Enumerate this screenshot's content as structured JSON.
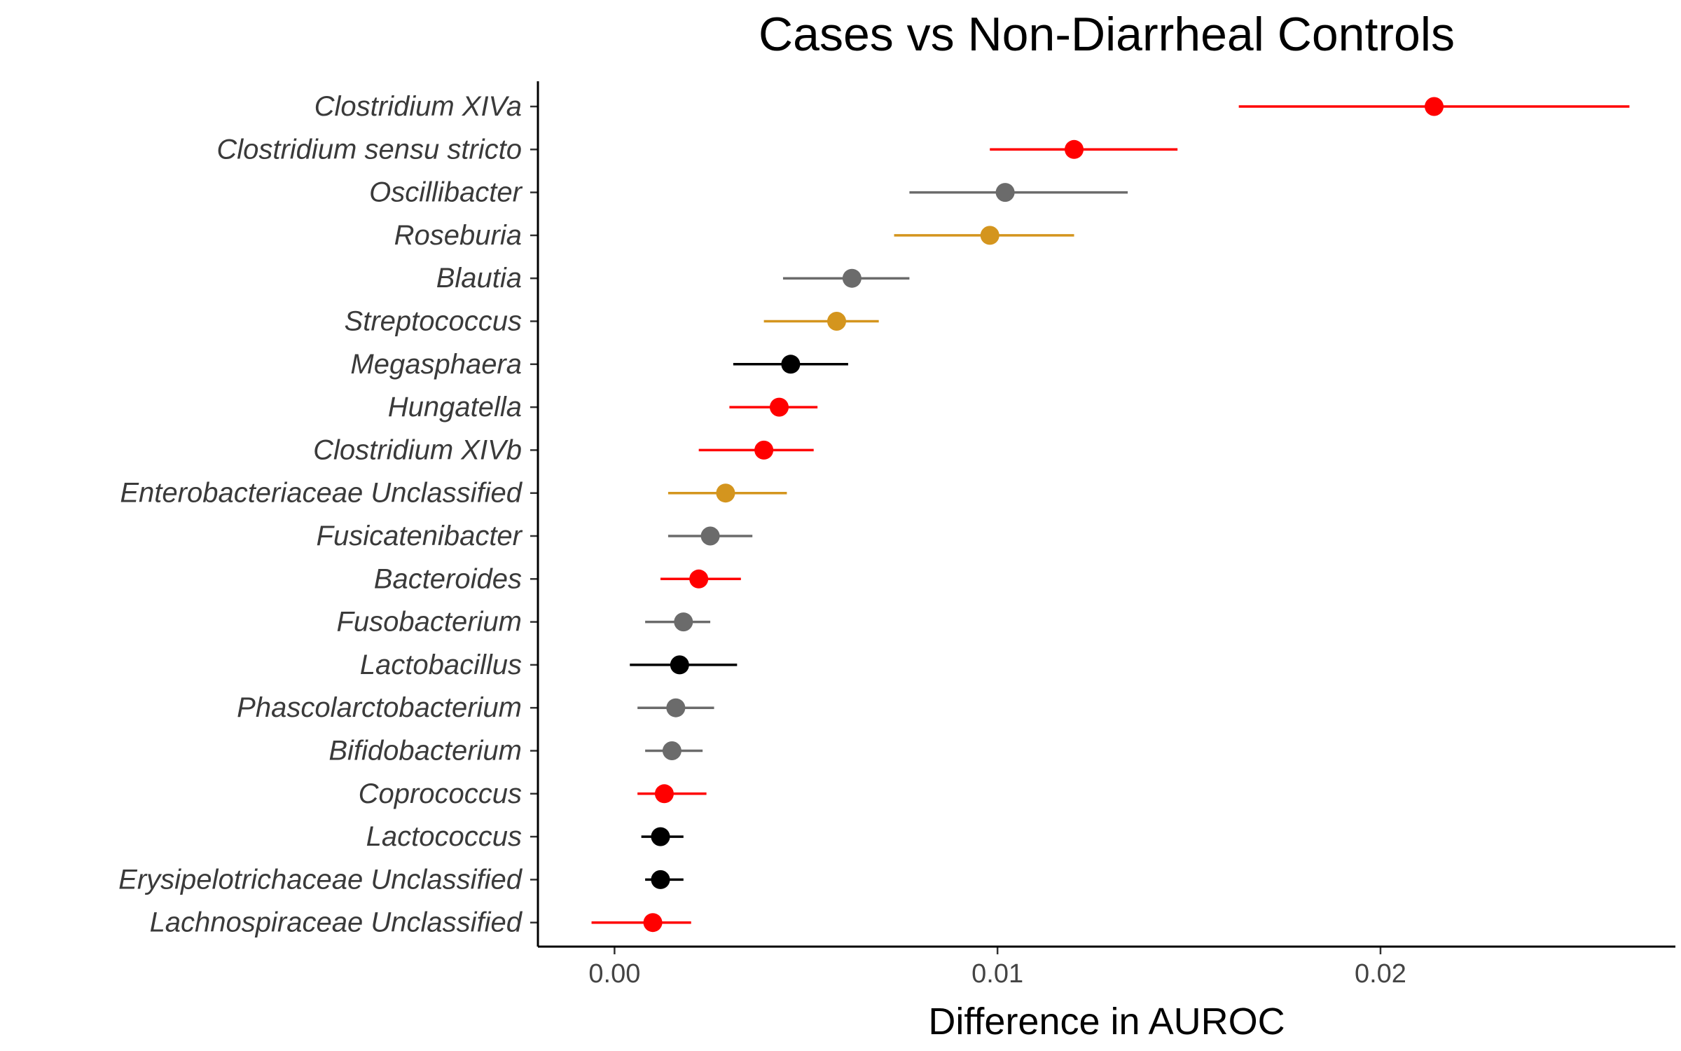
{
  "chart_data": {
    "type": "scatter",
    "title": "Cases vs Non-Diarrheal Controls",
    "xlabel": "Difference in AUROC",
    "ylabel": "",
    "xlim": [
      -0.002,
      0.0277
    ],
    "x_ticks": [
      {
        "value": 0.0,
        "label": "0.00"
      },
      {
        "value": 0.01,
        "label": "0.01"
      },
      {
        "value": 0.02,
        "label": "0.02"
      }
    ],
    "grid": false,
    "legend": "none",
    "colors": {
      "red": "#ff0000",
      "gray": "#6b6b6b",
      "gold": "#d4951e",
      "black": "#000000"
    },
    "points": [
      {
        "label": "Clostridium XIVa",
        "x": 0.0214,
        "low": 0.0163,
        "high": 0.0265,
        "color": "red"
      },
      {
        "label": "Clostridium sensu stricto",
        "x": 0.012,
        "low": 0.0098,
        "high": 0.0147,
        "color": "red"
      },
      {
        "label": "Oscillibacter",
        "x": 0.0102,
        "low": 0.0077,
        "high": 0.0134,
        "color": "gray"
      },
      {
        "label": "Roseburia",
        "x": 0.0098,
        "low": 0.0073,
        "high": 0.012,
        "color": "gold"
      },
      {
        "label": "Blautia",
        "x": 0.0062,
        "low": 0.0044,
        "high": 0.0077,
        "color": "gray"
      },
      {
        "label": "Streptococcus",
        "x": 0.0058,
        "low": 0.0039,
        "high": 0.0069,
        "color": "gold"
      },
      {
        "label": "Megasphaera",
        "x": 0.0046,
        "low": 0.0031,
        "high": 0.0061,
        "color": "black"
      },
      {
        "label": "Hungatella",
        "x": 0.0043,
        "low": 0.003,
        "high": 0.0053,
        "color": "red"
      },
      {
        "label": "Clostridium XIVb",
        "x": 0.0039,
        "low": 0.0022,
        "high": 0.0052,
        "color": "red"
      },
      {
        "label": "Enterobacteriaceae Unclassified",
        "x": 0.0029,
        "low": 0.0014,
        "high": 0.0045,
        "color": "gold"
      },
      {
        "label": "Fusicatenibacter",
        "x": 0.0025,
        "low": 0.0014,
        "high": 0.0036,
        "color": "gray"
      },
      {
        "label": "Bacteroides",
        "x": 0.0022,
        "low": 0.0012,
        "high": 0.0033,
        "color": "red"
      },
      {
        "label": "Fusobacterium",
        "x": 0.0018,
        "low": 0.0008,
        "high": 0.0025,
        "color": "gray"
      },
      {
        "label": "Lactobacillus",
        "x": 0.0017,
        "low": 0.0004,
        "high": 0.0032,
        "color": "black"
      },
      {
        "label": "Phascolarctobacterium",
        "x": 0.0016,
        "low": 0.0006,
        "high": 0.0026,
        "color": "gray"
      },
      {
        "label": "Bifidobacterium",
        "x": 0.0015,
        "low": 0.0008,
        "high": 0.0023,
        "color": "gray"
      },
      {
        "label": "Coprococcus",
        "x": 0.0013,
        "low": 0.0006,
        "high": 0.0024,
        "color": "red"
      },
      {
        "label": "Lactococcus",
        "x": 0.0012,
        "low": 0.0007,
        "high": 0.0018,
        "color": "black"
      },
      {
        "label": "Erysipelotrichaceae Unclassified",
        "x": 0.0012,
        "low": 0.0008,
        "high": 0.0018,
        "color": "black"
      },
      {
        "label": "Lachnospiraceae Unclassified",
        "x": 0.001,
        "low": -0.0006,
        "high": 0.002,
        "color": "red"
      }
    ]
  }
}
